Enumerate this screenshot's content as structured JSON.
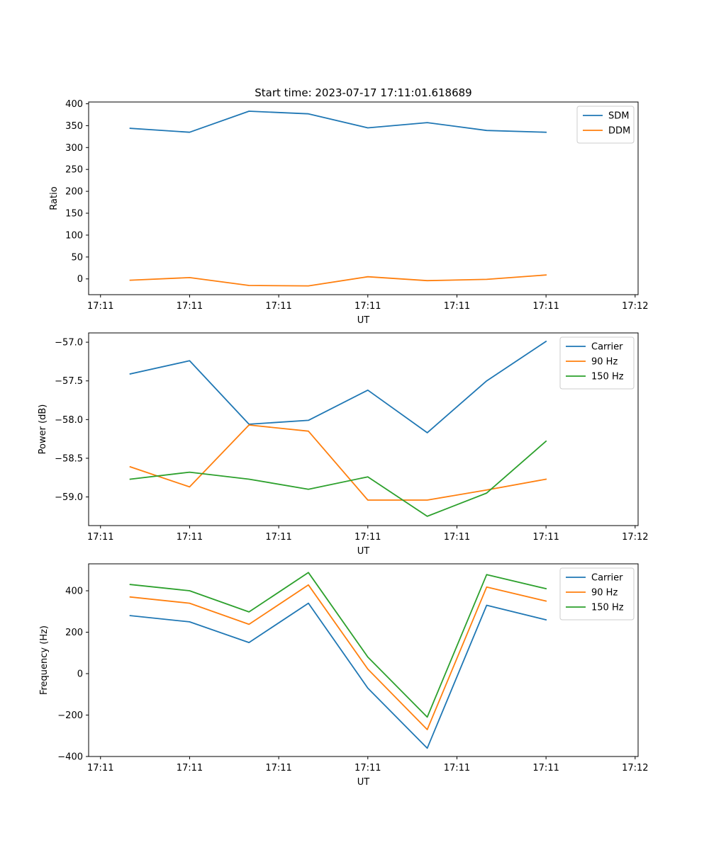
{
  "figure": {
    "title": "Start time: 2023-07-17 17:11:01.618689"
  },
  "chart_data": [
    {
      "type": "line",
      "title": "Start time: 2023-07-17 17:11:01.618689",
      "xlabel": "UT",
      "ylabel": "Ratio",
      "xlim": [
        -0.7,
        8.55
      ],
      "ylim": [
        -36,
        404
      ],
      "x_ticks": [
        {
          "value": -0.5,
          "label": "17:11"
        },
        {
          "value": 1,
          "label": "17:11"
        },
        {
          "value": 2.5,
          "label": "17:11"
        },
        {
          "value": 4,
          "label": "17:11"
        },
        {
          "value": 5.5,
          "label": "17:11"
        },
        {
          "value": 7,
          "label": "17:11"
        },
        {
          "value": 8.5,
          "label": "17:12"
        }
      ],
      "y_ticks": [
        0,
        50,
        100,
        150,
        200,
        250,
        300,
        350,
        400
      ],
      "legend_position": "top-right",
      "series": [
        {
          "name": "SDM",
          "color": "#1f77b4",
          "x": [
            0,
            1,
            2,
            3,
            4,
            5,
            6,
            7
          ],
          "values": [
            344,
            335,
            383,
            377,
            345,
            357,
            339,
            335
          ]
        },
        {
          "name": "DDM",
          "color": "#ff7f0e",
          "x": [
            0,
            1,
            2,
            3,
            4,
            5,
            6,
            7
          ],
          "values": [
            -3,
            3,
            -15,
            -16,
            5,
            -4,
            -1,
            9
          ]
        }
      ]
    },
    {
      "type": "line",
      "title": "",
      "xlabel": "UT",
      "ylabel": "Power (dB)",
      "xlim": [
        -0.7,
        8.55
      ],
      "ylim": [
        -59.37,
        -56.88
      ],
      "x_ticks": [
        {
          "value": -0.5,
          "label": "17:11"
        },
        {
          "value": 1,
          "label": "17:11"
        },
        {
          "value": 2.5,
          "label": "17:11"
        },
        {
          "value": 4,
          "label": "17:11"
        },
        {
          "value": 5.5,
          "label": "17:11"
        },
        {
          "value": 7,
          "label": "17:11"
        },
        {
          "value": 8.5,
          "label": "17:12"
        }
      ],
      "y_ticks": [
        {
          "value": -57.0,
          "label": "−57.0"
        },
        {
          "value": -57.5,
          "label": "−57.5"
        },
        {
          "value": -58.0,
          "label": "−58.0"
        },
        {
          "value": -58.5,
          "label": "−58.5"
        },
        {
          "value": -59.0,
          "label": "−59.0"
        }
      ],
      "legend_position": "top-right",
      "series": [
        {
          "name": "Carrier",
          "color": "#1f77b4",
          "x": [
            0,
            1,
            2,
            3,
            4,
            5,
            6,
            7
          ],
          "values": [
            -57.41,
            -57.24,
            -58.06,
            -58.01,
            -57.62,
            -58.17,
            -57.5,
            -56.99
          ]
        },
        {
          "name": "90 Hz",
          "color": "#ff7f0e",
          "x": [
            0,
            1,
            2,
            3,
            4,
            5,
            6,
            7
          ],
          "values": [
            -58.61,
            -58.87,
            -58.07,
            -58.15,
            -59.04,
            -59.04,
            -58.91,
            -58.77
          ]
        },
        {
          "name": "150 Hz",
          "color": "#2ca02c",
          "x": [
            0,
            1,
            2,
            3,
            4,
            5,
            6,
            7
          ],
          "values": [
            -58.77,
            -58.68,
            -58.77,
            -58.9,
            -58.74,
            -59.25,
            -58.95,
            -58.28
          ]
        }
      ]
    },
    {
      "type": "line",
      "title": "",
      "xlabel": "UT",
      "ylabel": "Frequency (Hz)",
      "xlim": [
        -0.7,
        8.55
      ],
      "ylim": [
        -400,
        530
      ],
      "x_ticks": [
        {
          "value": -0.5,
          "label": "17:11"
        },
        {
          "value": 1,
          "label": "17:11"
        },
        {
          "value": 2.5,
          "label": "17:11"
        },
        {
          "value": 4,
          "label": "17:11"
        },
        {
          "value": 5.5,
          "label": "17:11"
        },
        {
          "value": 7,
          "label": "17:11"
        },
        {
          "value": 8.5,
          "label": "17:12"
        }
      ],
      "y_ticks": [
        {
          "value": 400,
          "label": "400"
        },
        {
          "value": 200,
          "label": "200"
        },
        {
          "value": 0,
          "label": "0"
        },
        {
          "value": -200,
          "label": "−200"
        },
        {
          "value": -400,
          "label": "−400"
        }
      ],
      "legend_position": "top-right",
      "series": [
        {
          "name": "Carrier",
          "color": "#1f77b4",
          "x": [
            0,
            1,
            2,
            3,
            4,
            5,
            6,
            7
          ],
          "values": [
            280,
            250,
            150,
            340,
            -70,
            -360,
            330,
            260
          ]
        },
        {
          "name": "90 Hz",
          "color": "#ff7f0e",
          "x": [
            0,
            1,
            2,
            3,
            4,
            5,
            6,
            7
          ],
          "values": [
            370,
            340,
            238,
            428,
            22,
            -270,
            418,
            350
          ]
        },
        {
          "name": "150 Hz",
          "color": "#2ca02c",
          "x": [
            0,
            1,
            2,
            3,
            4,
            5,
            6,
            7
          ],
          "values": [
            430,
            400,
            298,
            488,
            80,
            -210,
            478,
            410
          ]
        }
      ]
    }
  ]
}
